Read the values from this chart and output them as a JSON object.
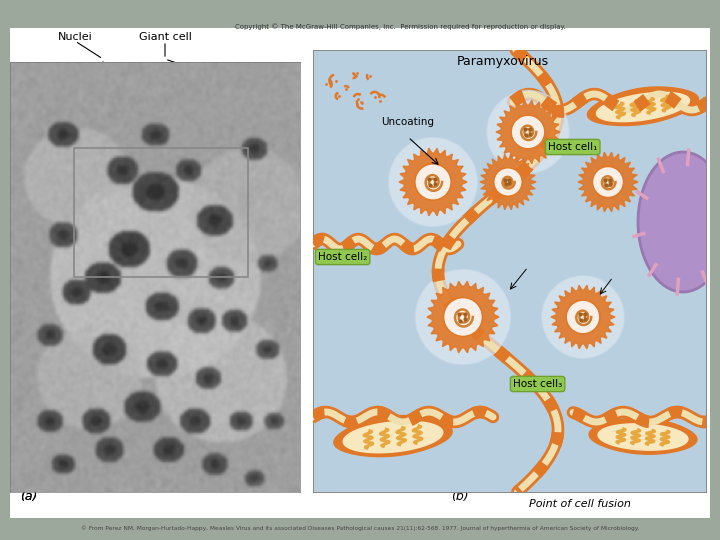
{
  "outer_bg": "#9da89d",
  "white_bg": "#ffffff",
  "panel_b_bg_top": "#b8cfe0",
  "panel_b_bg_bot": "#c8dcea",
  "copyright_text": "Copyright © The McGraw-Hill Companies, Inc.  Permission required for reproduction or display.",
  "bottom_citation": "© From Perez NM, Morgan-Hurtado-Happy, Measles Virus and its associated Diseases Pathological causes 21(11):62-568. 1977. Journal of hyperthermia of American Society of Microbiology.",
  "panel_a_label": "(a)",
  "panel_b_label": "(b)",
  "lbl_nuclei": "Nuclei",
  "lbl_giant": "Giant cell",
  "lbl_paramyxo": "Paramyxovirus",
  "lbl_uncoating": "Uncoating",
  "lbl_hostcell1": "Host cell₁",
  "lbl_hostcell2": "Host cell₂",
  "lbl_hostcell3": "Host cell₃",
  "lbl_fusion": "Point of cell fusion",
  "membrane_outer": "#e07828",
  "membrane_tan": "#d4b878",
  "membrane_cream": "#f0e0b0",
  "virus_outer": "#e07828",
  "virus_white": "#f8f0e8",
  "virus_rna": "#d08030",
  "mito_outer": "#e07828",
  "mito_inner": "#e8a840",
  "mito_bg": "#f8e8c0",
  "nucleus_fill": "#b090c8",
  "nucleus_edge": "#9878b0",
  "nucleus_stripe": "#e0a0c0",
  "green_box": "#90c850",
  "green_box_edge": "#70a030",
  "fig_w": 7.2,
  "fig_h": 5.4,
  "dpi": 100
}
